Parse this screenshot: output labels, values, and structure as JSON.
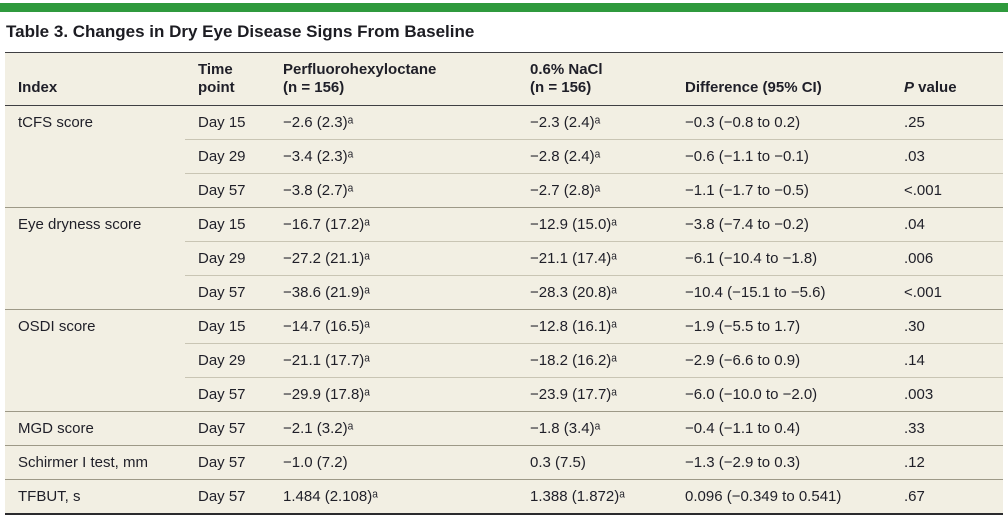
{
  "title": "Table 3. Changes in Dry Eye Disease Signs From Baseline",
  "colors": {
    "accent_green": "#2f9a3d",
    "table_background": "#f2efe3"
  },
  "table": {
    "headers": [
      "Index",
      "Time\npoint",
      "Perfluorohexyloctane\n(n = 156)",
      "0.6% NaCl\n(n = 156)",
      "Difference (95% CI)"
    ],
    "p_header": {
      "italic": "P",
      "rest": " value"
    },
    "groups": [
      {
        "index": "tCFS score",
        "rows": [
          {
            "time": "Day 15",
            "drug": "−2.6 (2.3)ᵃ",
            "control": "−2.3 (2.4)ᵃ",
            "diff": "−0.3 (−0.8 to 0.2)",
            "p": ".25"
          },
          {
            "time": "Day 29",
            "drug": "−3.4 (2.3)ᵃ",
            "control": "−2.8 (2.4)ᵃ",
            "diff": "−0.6 (−1.1 to −0.1)",
            "p": ".03"
          },
          {
            "time": "Day 57",
            "drug": "−3.8 (2.7)ᵃ",
            "control": "−2.7 (2.8)ᵃ",
            "diff": "−1.1 (−1.7 to −0.5)",
            "p": "<.001"
          }
        ]
      },
      {
        "index": "Eye dryness score",
        "rows": [
          {
            "time": "Day 15",
            "drug": "−16.7 (17.2)ᵃ",
            "control": "−12.9 (15.0)ᵃ",
            "diff": "−3.8 (−7.4 to −0.2)",
            "p": ".04"
          },
          {
            "time": "Day 29",
            "drug": "−27.2 (21.1)ᵃ",
            "control": "−21.1 (17.4)ᵃ",
            "diff": "−6.1 (−10.4 to −1.8)",
            "p": ".006"
          },
          {
            "time": "Day 57",
            "drug": "−38.6 (21.9)ᵃ",
            "control": "−28.3 (20.8)ᵃ",
            "diff": "−10.4 (−15.1 to −5.6)",
            "p": "<.001"
          }
        ]
      },
      {
        "index": "OSDI score",
        "rows": [
          {
            "time": "Day 15",
            "drug": "−14.7 (16.5)ᵃ",
            "control": "−12.8 (16.1)ᵃ",
            "diff": "−1.9 (−5.5 to 1.7)",
            "p": ".30"
          },
          {
            "time": "Day 29",
            "drug": "−21.1 (17.7)ᵃ",
            "control": "−18.2 (16.2)ᵃ",
            "diff": "−2.9 (−6.6 to 0.9)",
            "p": ".14"
          },
          {
            "time": "Day 57",
            "drug": "−29.9 (17.8)ᵃ",
            "control": "−23.9 (17.7)ᵃ",
            "diff": "−6.0 (−10.0 to −2.0)",
            "p": ".003"
          }
        ]
      },
      {
        "index": "MGD score",
        "rows": [
          {
            "time": "Day 57",
            "drug": "−2.1 (3.2)ᵃ",
            "control": "−1.8 (3.4)ᵃ",
            "diff": "−0.4 (−1.1 to 0.4)",
            "p": ".33"
          }
        ]
      },
      {
        "index": "Schirmer I test, mm",
        "rows": [
          {
            "time": "Day 57",
            "drug": "−1.0 (7.2)",
            "control": "0.3 (7.5)",
            "diff": "−1.3 (−2.9 to 0.3)",
            "p": ".12"
          }
        ]
      },
      {
        "index": "TFBUT, s",
        "rows": [
          {
            "time": "Day 57",
            "drug": "1.484 (2.108)ᵃ",
            "control": "1.388 (1.872)ᵃ",
            "diff": "0.096 (−0.349 to 0.541)",
            "p": ".67"
          }
        ]
      }
    ]
  }
}
